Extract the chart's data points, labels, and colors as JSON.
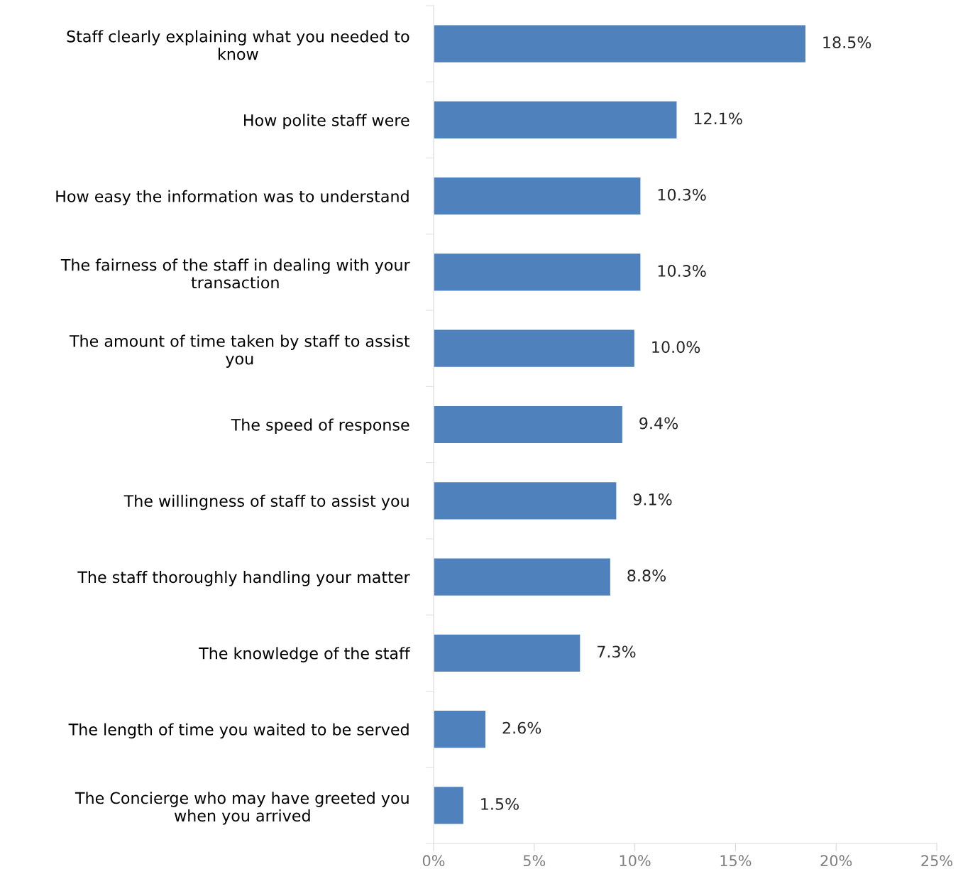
{
  "chart_data": {
    "type": "bar",
    "orientation": "horizontal",
    "categories": [
      "Staff clearly explaining what you needed to\nknow",
      "How polite staff were",
      "How easy the information was to understand",
      "The fairness of the staff in dealing with your\ntransaction",
      "The amount of time taken by staff to assist\nyou",
      "The speed of response",
      "The willingness of staff to assist you",
      "The staff thoroughly handling your matter",
      "The knowledge of the staff",
      "The length of time you waited to be served",
      "The Concierge who may have greeted you\nwhen you arrived"
    ],
    "values": [
      18.5,
      12.1,
      10.3,
      10.3,
      10.0,
      9.4,
      9.1,
      8.8,
      7.3,
      2.6,
      1.5
    ],
    "value_labels": [
      "18.5%",
      "12.1%",
      "10.3%",
      "10.3%",
      "10.0%",
      "9.4%",
      "9.1%",
      "8.8%",
      "7.3%",
      "2.6%",
      "1.5%"
    ],
    "color": "#4f81bd",
    "xlim": [
      0,
      25
    ],
    "xticks": [
      {
        "value": 0,
        "label": "0%"
      },
      {
        "value": 5,
        "label": "5%"
      },
      {
        "value": 10,
        "label": "10%"
      },
      {
        "value": 15,
        "label": "15%"
      },
      {
        "value": 20,
        "label": "20%"
      },
      {
        "value": 25,
        "label": "25%"
      }
    ],
    "grid": false,
    "legend": false
  }
}
